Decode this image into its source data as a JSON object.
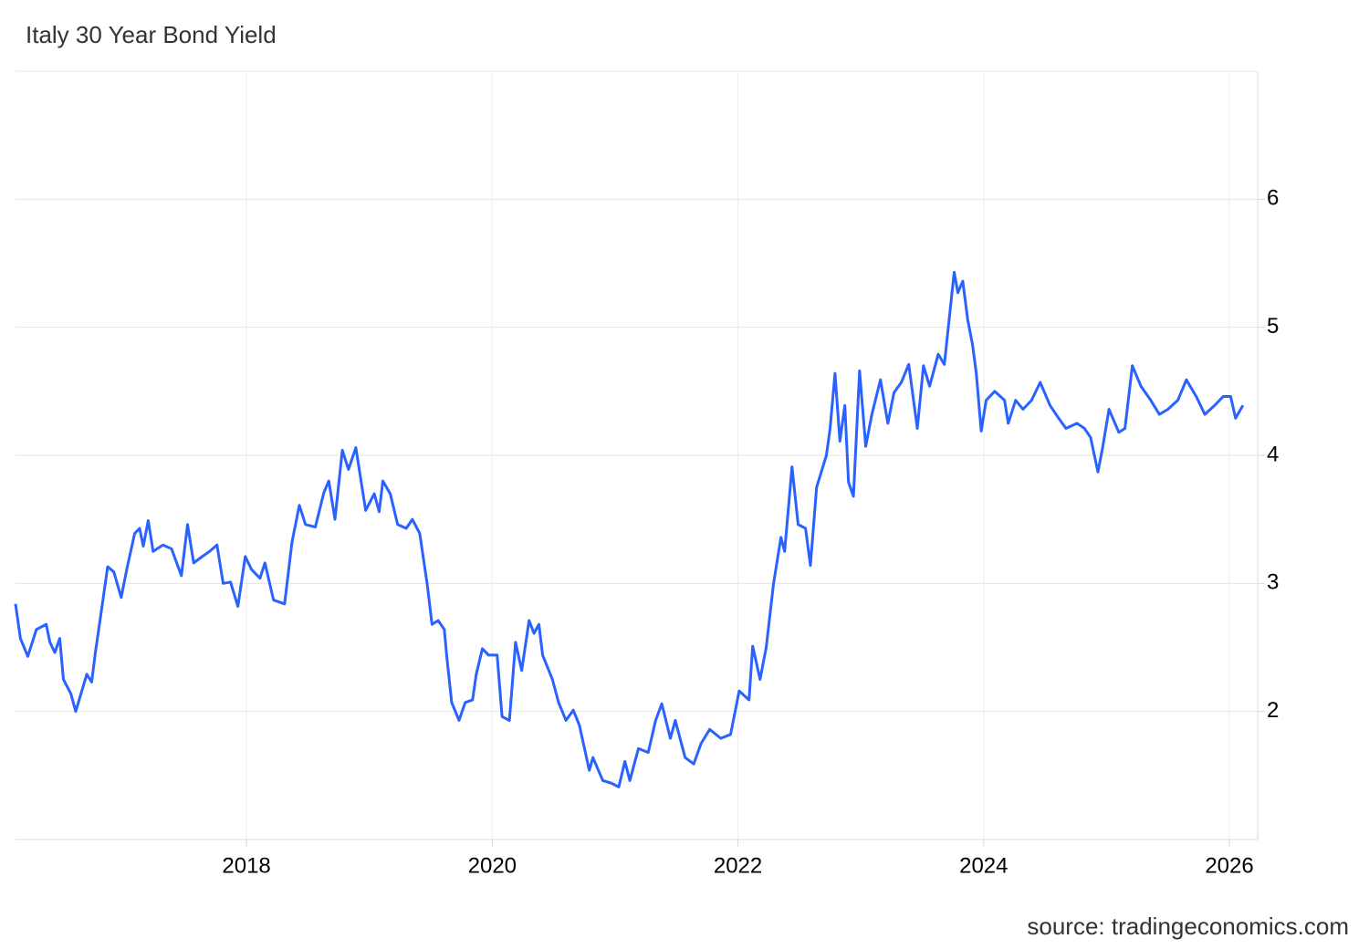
{
  "chart_data": {
    "type": "line",
    "title": "Italy 30 Year Bond Yield",
    "source": "source: tradingeconomics.com",
    "x": [
      2016.12,
      2016.16,
      2016.22,
      2016.29,
      2016.37,
      2016.4,
      2016.44,
      2016.48,
      2016.51,
      2016.57,
      2016.61,
      2016.7,
      2016.74,
      2016.77,
      2016.83,
      2016.87,
      2016.92,
      2016.98,
      2017.03,
      2017.09,
      2017.13,
      2017.16,
      2017.2,
      2017.24,
      2017.32,
      2017.39,
      2017.47,
      2017.52,
      2017.57,
      2017.64,
      2017.7,
      2017.76,
      2017.81,
      2017.87,
      2017.93,
      2017.99,
      2018.04,
      2018.11,
      2018.15,
      2018.22,
      2018.31,
      2018.37,
      2018.43,
      2018.48,
      2018.56,
      2018.63,
      2018.67,
      2018.72,
      2018.78,
      2018.83,
      2018.89,
      2018.97,
      2019.04,
      2019.08,
      2019.11,
      2019.17,
      2019.23,
      2019.3,
      2019.35,
      2019.41,
      2019.47,
      2019.51,
      2019.56,
      2019.61,
      2019.63,
      2019.67,
      2019.73,
      2019.78,
      2019.84,
      2019.87,
      2019.92,
      2019.97,
      2020.04,
      2020.08,
      2020.14,
      2020.19,
      2020.24,
      2020.3,
      2020.34,
      2020.38,
      2020.41,
      2020.49,
      2020.54,
      2020.6,
      2020.66,
      2020.71,
      2020.79,
      2020.82,
      2020.9,
      2020.97,
      2021.03,
      2021.08,
      2021.12,
      2021.19,
      2021.27,
      2021.33,
      2021.38,
      2021.45,
      2021.49,
      2021.57,
      2021.64,
      2021.7,
      2021.77,
      2021.86,
      2021.94,
      2022.01,
      2022.09,
      2022.12,
      2022.18,
      2022.23,
      2022.29,
      2022.35,
      2022.38,
      2022.44,
      2022.49,
      2022.55,
      2022.59,
      2022.64,
      2022.72,
      2022.75,
      2022.79,
      2022.83,
      2022.87,
      2022.9,
      2022.94,
      2022.99,
      2023.04,
      2023.09,
      2023.16,
      2023.22,
      2023.27,
      2023.33,
      2023.39,
      2023.46,
      2023.51,
      2023.56,
      2023.63,
      2023.68,
      2023.76,
      2023.79,
      2023.83,
      2023.87,
      2023.91,
      2023.94,
      2023.98,
      2024.02,
      2024.09,
      2024.17,
      2024.2,
      2024.26,
      2024.32,
      2024.39,
      2024.46,
      2024.54,
      2024.61,
      2024.67,
      2024.76,
      2024.82,
      2024.87,
      2024.93,
      2024.97,
      2025.02,
      2025.1,
      2025.15,
      2025.21,
      2025.28,
      2025.36,
      2025.43,
      2025.5,
      2025.58,
      2025.65,
      2025.73,
      2025.8,
      2025.88,
      2025.95,
      2026.01,
      2026.05,
      2026.11
    ],
    "series": [
      {
        "name": "Italy 30 Year Bond Yield",
        "color": "#2962ff",
        "values": [
          2.84,
          2.57,
          2.43,
          2.64,
          2.68,
          2.54,
          2.46,
          2.57,
          2.25,
          2.14,
          2.0,
          2.29,
          2.23,
          2.46,
          2.86,
          3.13,
          3.09,
          2.89,
          3.13,
          3.39,
          3.43,
          3.29,
          3.49,
          3.25,
          3.3,
          3.27,
          3.06,
          3.46,
          3.16,
          3.21,
          3.25,
          3.3,
          3.0,
          3.01,
          2.82,
          3.21,
          3.11,
          3.04,
          3.16,
          2.87,
          2.84,
          3.32,
          3.61,
          3.46,
          3.44,
          3.71,
          3.8,
          3.5,
          4.04,
          3.89,
          4.06,
          3.57,
          3.7,
          3.56,
          3.8,
          3.7,
          3.46,
          3.43,
          3.5,
          3.39,
          3.0,
          2.68,
          2.71,
          2.64,
          2.43,
          2.07,
          1.93,
          2.07,
          2.09,
          2.29,
          2.49,
          2.44,
          2.44,
          1.96,
          1.93,
          2.54,
          2.32,
          2.71,
          2.61,
          2.68,
          2.44,
          2.25,
          2.07,
          1.93,
          2.01,
          1.89,
          1.54,
          1.64,
          1.46,
          1.44,
          1.41,
          1.61,
          1.46,
          1.71,
          1.68,
          1.93,
          2.06,
          1.79,
          1.93,
          1.64,
          1.59,
          1.75,
          1.86,
          1.79,
          1.82,
          2.16,
          2.09,
          2.51,
          2.25,
          2.5,
          3.0,
          3.36,
          3.25,
          3.91,
          3.46,
          3.43,
          3.14,
          3.75,
          4.0,
          4.21,
          4.64,
          4.11,
          4.39,
          3.79,
          3.68,
          4.66,
          4.07,
          4.32,
          4.59,
          4.25,
          4.49,
          4.57,
          4.71,
          4.21,
          4.7,
          4.54,
          4.79,
          4.71,
          5.43,
          5.27,
          5.36,
          5.06,
          4.86,
          4.64,
          4.19,
          4.43,
          4.5,
          4.43,
          4.25,
          4.43,
          4.36,
          4.43,
          4.57,
          4.39,
          4.29,
          4.21,
          4.25,
          4.21,
          4.14,
          3.87,
          4.07,
          4.36,
          4.18,
          4.21,
          4.7,
          4.54,
          4.43,
          4.32,
          4.36,
          4.43,
          4.59,
          4.46,
          4.32,
          4.39,
          4.46,
          4.46,
          4.29,
          4.39
        ]
      }
    ],
    "xlim": [
      2016.12,
      2026.23
    ],
    "xticks": [
      2018,
      2020,
      2022,
      2024,
      2026
    ],
    "ylim": [
      1,
      7
    ],
    "yticks": [
      2,
      3,
      4,
      5,
      6
    ],
    "grid": true
  }
}
